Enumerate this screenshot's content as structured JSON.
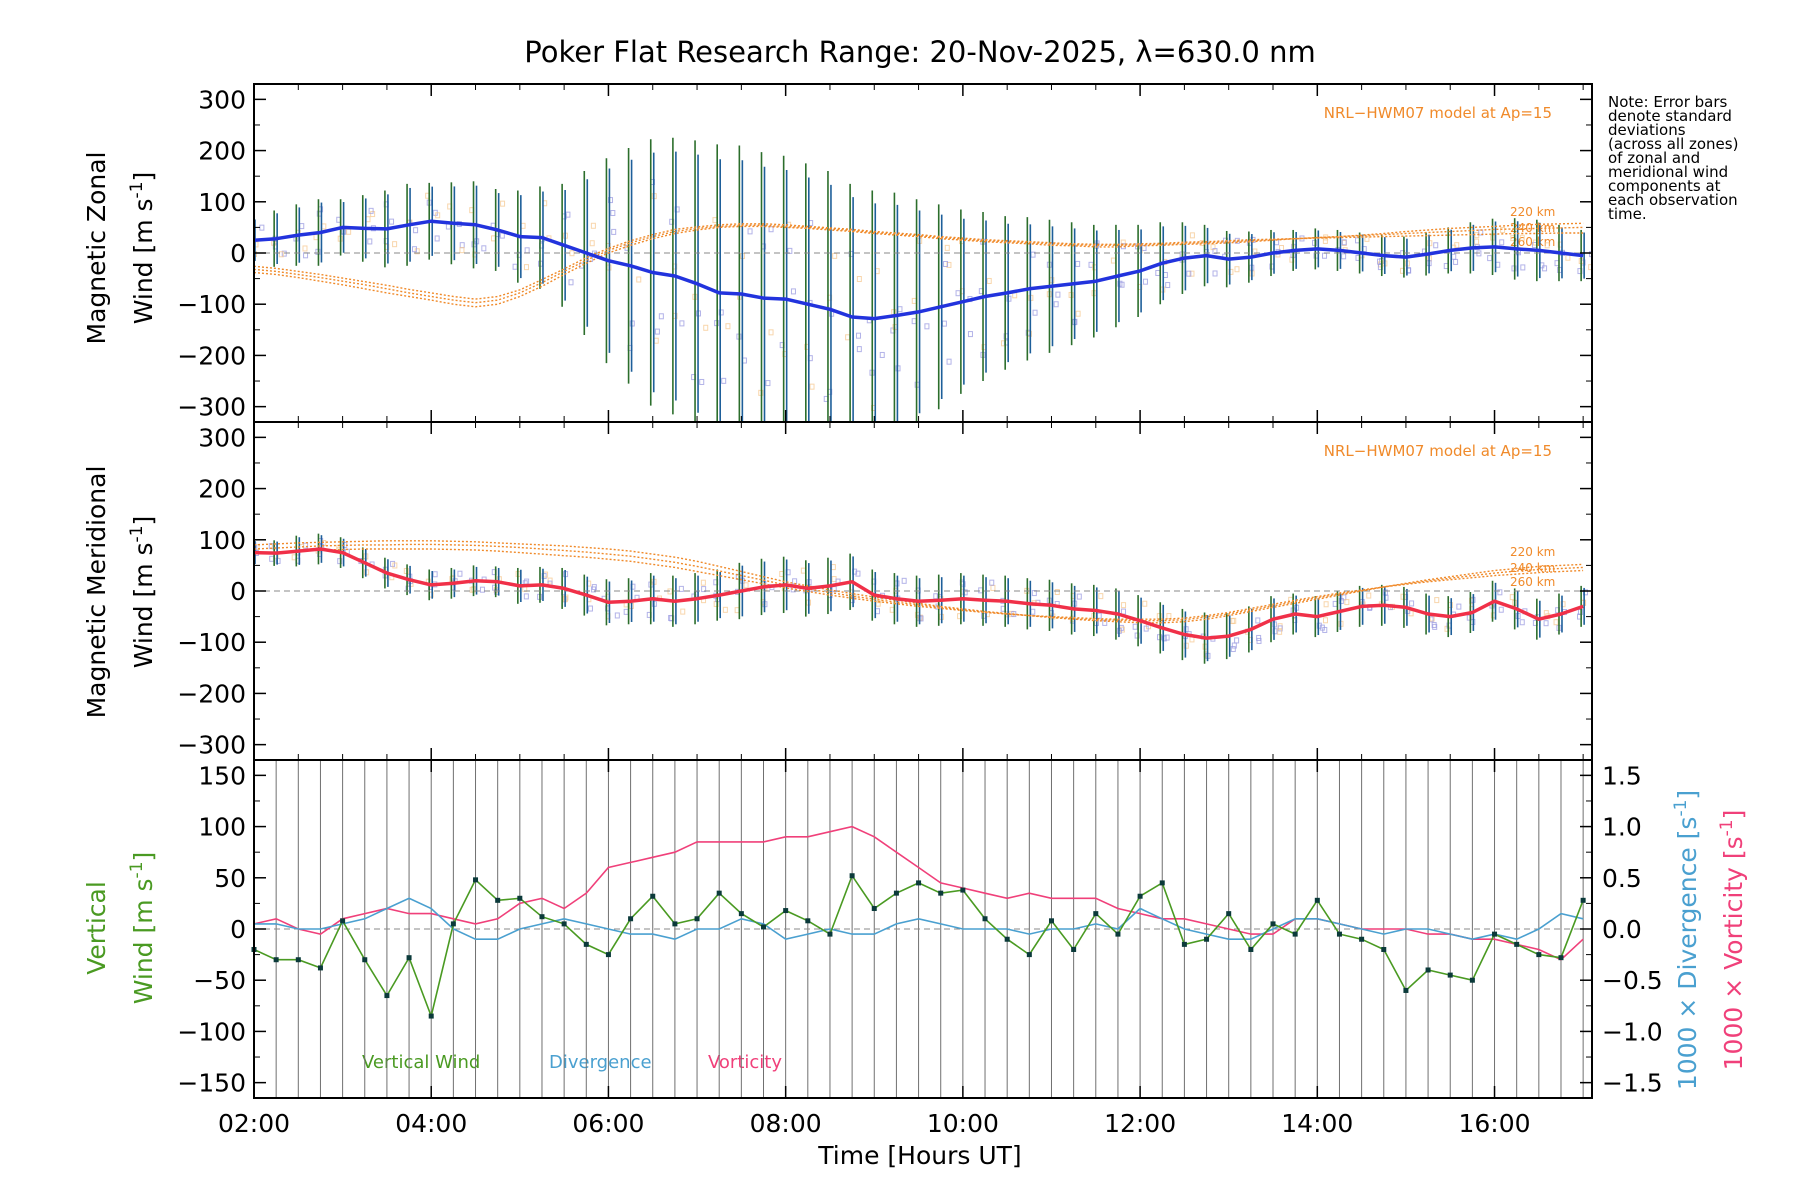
{
  "title": "Poker Flat Research Range: 20-Nov-2025, λ=630.0 nm",
  "note_lines": [
    "Note: Error bars",
    "denote standard",
    "deviations",
    "(across all zones)",
    "of zonal and",
    "meridional wind",
    "components at",
    "each observation",
    "time."
  ],
  "colors": {
    "zonal": "#2233dd",
    "meridional": "#f03048",
    "model": "#f08a2a",
    "vertical": "#4a9a22",
    "divergence": "#4aa0d0",
    "vorticity": "#f0407a",
    "scatter": "#9a9ae0",
    "grid": "#707070"
  },
  "chart_data": [
    {
      "id": "zonal",
      "type": "line",
      "ylabel_line1": "Magnetic Zonal",
      "ylabel_line2": "Wind [m s",
      "ylabel_sup": "-1",
      "ylabel_close": "]",
      "ylim": [
        -330,
        330
      ],
      "yticks": [
        300,
        200,
        100,
        0,
        -100,
        -200,
        -300
      ],
      "ytick_labels": [
        "300",
        "200",
        "100",
        "0",
        "−100",
        "−200",
        "−300"
      ],
      "model_label": "NRL−HWM07 model at Ap=15",
      "altitude_labels": [
        "220 km",
        "240 km",
        "260 km"
      ],
      "x": [
        2.0,
        2.25,
        2.5,
        2.75,
        3.0,
        3.25,
        3.5,
        3.75,
        4.0,
        4.25,
        4.5,
        4.75,
        5.0,
        5.25,
        5.5,
        5.75,
        6.0,
        6.25,
        6.5,
        6.75,
        7.0,
        7.25,
        7.5,
        7.75,
        8.0,
        8.25,
        8.5,
        8.75,
        9.0,
        9.25,
        9.5,
        9.75,
        10.0,
        10.25,
        10.5,
        10.75,
        11.0,
        11.25,
        11.5,
        11.75,
        12.0,
        12.25,
        12.5,
        12.75,
        13.0,
        13.25,
        13.5,
        13.75,
        14.0,
        14.25,
        14.5,
        14.75,
        15.0,
        15.25,
        15.5,
        15.75,
        16.0,
        16.25,
        16.5,
        16.75,
        17.0
      ],
      "series": [
        {
          "name": "Zonal wind",
          "values": [
            25,
            28,
            35,
            40,
            50,
            48,
            47,
            55,
            62,
            58,
            55,
            45,
            32,
            30,
            15,
            0,
            -15,
            -25,
            -38,
            -45,
            -60,
            -78,
            -80,
            -88,
            -90,
            -100,
            -110,
            -125,
            -128,
            -122,
            -115,
            -105,
            -95,
            -85,
            -78,
            -70,
            -65,
            -60,
            -55,
            -45,
            -35,
            -20,
            -10,
            -5,
            -12,
            -8,
            0,
            5,
            8,
            5,
            0,
            -5,
            -8,
            -2,
            5,
            10,
            12,
            8,
            5,
            0,
            -5
          ],
          "std": [
            45,
            55,
            60,
            65,
            55,
            65,
            75,
            80,
            75,
            80,
            85,
            80,
            90,
            100,
            120,
            160,
            200,
            230,
            260,
            270,
            280,
            290,
            290,
            285,
            280,
            275,
            270,
            260,
            250,
            240,
            220,
            200,
            180,
            165,
            150,
            140,
            130,
            120,
            110,
            100,
            90,
            80,
            70,
            60,
            55,
            50,
            45,
            40,
            40,
            40,
            40,
            40,
            40,
            42,
            45,
            50,
            55,
            60,
            60,
            55,
            50
          ]
        },
        {
          "name": "Model 220 km",
          "values": [
            -38,
            -42,
            -48,
            -55,
            -62,
            -70,
            -78,
            -85,
            -92,
            -100,
            -105,
            -100,
            -85,
            -65,
            -42,
            -20,
            0,
            15,
            28,
            38,
            45,
            50,
            52,
            52,
            50,
            48,
            45,
            42,
            38,
            35,
            32,
            28,
            25,
            22,
            20,
            18,
            15,
            14,
            12,
            12,
            14,
            15,
            17,
            18,
            20,
            22,
            25,
            28,
            30,
            32,
            35,
            38,
            42,
            45,
            48,
            50,
            52,
            54,
            56,
            57,
            58
          ]
        },
        {
          "name": "Model 240 km",
          "values": [
            -32,
            -36,
            -42,
            -48,
            -55,
            -62,
            -70,
            -78,
            -85,
            -92,
            -97,
            -92,
            -78,
            -58,
            -36,
            -14,
            5,
            20,
            32,
            42,
            48,
            52,
            54,
            54,
            52,
            50,
            47,
            44,
            40,
            37,
            34,
            30,
            27,
            24,
            22,
            20,
            18,
            16,
            15,
            15,
            16,
            17,
            19,
            20,
            22,
            24,
            26,
            28,
            30,
            32,
            34,
            36,
            38,
            40,
            42,
            44,
            46,
            47,
            48,
            49,
            50
          ]
        },
        {
          "name": "Model 260 km",
          "values": [
            -26,
            -30,
            -36,
            -42,
            -49,
            -56,
            -63,
            -71,
            -78,
            -85,
            -90,
            -85,
            -72,
            -52,
            -31,
            -9,
            9,
            24,
            36,
            46,
            51,
            55,
            57,
            57,
            55,
            52,
            49,
            46,
            42,
            39,
            36,
            32,
            29,
            26,
            24,
            22,
            20,
            18,
            17,
            17,
            18,
            19,
            21,
            22,
            24,
            26,
            27,
            28,
            29,
            30,
            31,
            32,
            33,
            34,
            35,
            36,
            37,
            38,
            38,
            39,
            39
          ]
        }
      ]
    },
    {
      "id": "meridional",
      "type": "line",
      "ylabel_line1": "Magnetic Meridional",
      "ylabel_line2": "Wind [m s",
      "ylabel_sup": "-1",
      "ylabel_close": "]",
      "ylim": [
        -330,
        330
      ],
      "yticks": [
        300,
        200,
        100,
        0,
        -100,
        -200,
        -300
      ],
      "ytick_labels": [
        "300",
        "200",
        "100",
        "0",
        "−100",
        "−200",
        "−300"
      ],
      "model_label": "NRL−HWM07 model at Ap=15",
      "altitude_labels": [
        "220 km",
        "240 km",
        "260 km"
      ],
      "x": [
        2.0,
        2.25,
        2.5,
        2.75,
        3.0,
        3.25,
        3.5,
        3.75,
        4.0,
        4.25,
        4.5,
        4.75,
        5.0,
        5.25,
        5.5,
        5.75,
        6.0,
        6.25,
        6.5,
        6.75,
        7.0,
        7.25,
        7.5,
        7.75,
        8.0,
        8.25,
        8.5,
        8.75,
        9.0,
        9.25,
        9.5,
        9.75,
        10.0,
        10.25,
        10.5,
        10.75,
        11.0,
        11.25,
        11.5,
        11.75,
        12.0,
        12.25,
        12.5,
        12.75,
        13.0,
        13.25,
        13.5,
        13.75,
        14.0,
        14.25,
        14.5,
        14.75,
        15.0,
        15.25,
        15.5,
        15.75,
        16.0,
        16.25,
        16.5,
        16.75,
        17.0
      ],
      "series": [
        {
          "name": "Meridional wind",
          "values": [
            75,
            74,
            78,
            82,
            75,
            55,
            35,
            22,
            12,
            15,
            20,
            18,
            10,
            12,
            5,
            -8,
            -22,
            -20,
            -15,
            -20,
            -15,
            -8,
            0,
            8,
            12,
            5,
            10,
            18,
            -8,
            -15,
            -20,
            -18,
            -15,
            -18,
            -20,
            -25,
            -28,
            -35,
            -38,
            -45,
            -58,
            -72,
            -85,
            -92,
            -88,
            -75,
            -55,
            -45,
            -50,
            -40,
            -30,
            -28,
            -32,
            -45,
            -50,
            -42,
            -20,
            -35,
            -55,
            -45,
            -30
          ],
          "std": [
            25,
            25,
            30,
            30,
            30,
            30,
            30,
            30,
            30,
            30,
            30,
            30,
            35,
            35,
            40,
            40,
            45,
            45,
            50,
            50,
            50,
            50,
            55,
            55,
            55,
            55,
            55,
            55,
            50,
            50,
            50,
            50,
            50,
            50,
            50,
            50,
            50,
            50,
            50,
            50,
            50,
            50,
            50,
            50,
            45,
            45,
            45,
            40,
            40,
            40,
            40,
            40,
            40,
            40,
            40,
            40,
            40,
            40,
            40,
            40,
            40
          ]
        },
        {
          "name": "Model 220 km",
          "values": [
            90,
            92,
            94,
            95,
            96,
            97,
            98,
            98,
            98,
            97,
            96,
            94,
            92,
            90,
            88,
            85,
            82,
            78,
            72,
            66,
            58,
            48,
            38,
            28,
            18,
            10,
            2,
            -5,
            -12,
            -18,
            -24,
            -30,
            -35,
            -40,
            -44,
            -48,
            -52,
            -55,
            -58,
            -60,
            -62,
            -62,
            -60,
            -55,
            -48,
            -40,
            -32,
            -24,
            -16,
            -8,
            0,
            8,
            15,
            22,
            28,
            34,
            40,
            44,
            48,
            50,
            52
          ]
        },
        {
          "name": "Model 240 km",
          "values": [
            82,
            84,
            86,
            88,
            89,
            90,
            90,
            91,
            91,
            90,
            89,
            87,
            85,
            82,
            79,
            76,
            72,
            68,
            62,
            56,
            48,
            39,
            30,
            21,
            12,
            4,
            -3,
            -10,
            -16,
            -22,
            -27,
            -32,
            -37,
            -41,
            -45,
            -48,
            -51,
            -54,
            -56,
            -57,
            -58,
            -58,
            -56,
            -51,
            -45,
            -37,
            -29,
            -21,
            -13,
            -6,
            1,
            8,
            14,
            20,
            25,
            30,
            35,
            39,
            42,
            44,
            46
          ]
        },
        {
          "name": "Model 260 km",
          "values": [
            74,
            76,
            78,
            80,
            81,
            82,
            82,
            82,
            82,
            81,
            80,
            78,
            75,
            72,
            69,
            66,
            62,
            58,
            52,
            46,
            38,
            30,
            22,
            14,
            6,
            -1,
            -8,
            -14,
            -20,
            -25,
            -30,
            -34,
            -38,
            -42,
            -45,
            -48,
            -50,
            -52,
            -54,
            -55,
            -55,
            -55,
            -53,
            -48,
            -42,
            -34,
            -26,
            -18,
            -11,
            -4,
            2,
            8,
            13,
            18,
            22,
            26,
            30,
            33,
            36,
            38,
            40
          ]
        }
      ]
    },
    {
      "id": "vertical",
      "type": "line",
      "ylabel_line1": "Vertical",
      "ylabel_line2": "Wind [m s",
      "ylabel_sup": "-1",
      "ylabel_close": "]",
      "ylabel_right1": "1000 × Divergence [s",
      "ylabel_right2": "1000 × Vorticity [s",
      "ylim": [
        -165,
        165
      ],
      "yticks": [
        150,
        100,
        50,
        0,
        -50,
        -100,
        -150
      ],
      "ytick_labels": [
        "150",
        "100",
        "50",
        "0",
        "−50",
        "−100",
        "−150"
      ],
      "y2lim": [
        -1.65,
        1.65
      ],
      "y2ticks": [
        1.5,
        1.0,
        0.5,
        0.0,
        -0.5,
        -1.0,
        -1.5
      ],
      "y2tick_labels": [
        "1.5",
        "1.0",
        "0.5",
        "0.0",
        "−0.5",
        "−1.0",
        "−1.5"
      ],
      "xticks": [
        2,
        4,
        6,
        8,
        10,
        12,
        14,
        16
      ],
      "xtick_labels": [
        "02:00",
        "04:00",
        "06:00",
        "08:00",
        "10:00",
        "12:00",
        "14:00",
        "16:00"
      ],
      "xlim": [
        2.0,
        17.1
      ],
      "xlabel": "Time [Hours UT]",
      "legend": [
        "Vertical Wind",
        "Divergence",
        "Vorticity"
      ],
      "x": [
        2.0,
        2.25,
        2.5,
        2.75,
        3.0,
        3.25,
        3.5,
        3.75,
        4.0,
        4.25,
        4.5,
        4.75,
        5.0,
        5.25,
        5.5,
        5.75,
        6.0,
        6.25,
        6.5,
        6.75,
        7.0,
        7.25,
        7.5,
        7.75,
        8.0,
        8.25,
        8.5,
        8.75,
        9.0,
        9.25,
        9.5,
        9.75,
        10.0,
        10.25,
        10.5,
        10.75,
        11.0,
        11.25,
        11.5,
        11.75,
        12.0,
        12.25,
        12.5,
        12.75,
        13.0,
        13.25,
        13.5,
        13.75,
        14.0,
        14.25,
        14.5,
        14.75,
        15.0,
        15.25,
        15.5,
        15.75,
        16.0,
        16.25,
        16.5,
        16.75,
        17.0
      ],
      "series": [
        {
          "name": "Vertical Wind",
          "values": [
            -20,
            -30,
            -30,
            -38,
            8,
            -30,
            -65,
            -28,
            -85,
            5,
            48,
            28,
            30,
            12,
            5,
            -15,
            -25,
            10,
            32,
            5,
            10,
            35,
            15,
            2,
            18,
            8,
            -5,
            52,
            20,
            35,
            45,
            35,
            38,
            10,
            -10,
            -25,
            8,
            -20,
            15,
            -5,
            32,
            45,
            -15,
            -10,
            15,
            -20,
            5,
            -5,
            28,
            -5,
            -10,
            -20,
            -60,
            -40,
            -45,
            -50,
            -5,
            -15,
            -25,
            -28,
            28
          ]
        },
        {
          "name": "Divergence",
          "values": [
            0.05,
            0.05,
            0.0,
            0.0,
            0.05,
            0.1,
            0.2,
            0.3,
            0.2,
            0.0,
            -0.1,
            -0.1,
            0.0,
            0.05,
            0.1,
            0.05,
            0.0,
            -0.05,
            -0.05,
            -0.1,
            0.0,
            0.0,
            0.1,
            0.05,
            -0.1,
            -0.05,
            0.0,
            -0.05,
            -0.05,
            0.05,
            0.1,
            0.05,
            0.0,
            0.0,
            0.0,
            -0.05,
            0.0,
            0.0,
            0.05,
            0.0,
            0.2,
            0.1,
            0.0,
            -0.05,
            -0.1,
            -0.1,
            0.0,
            0.1,
            0.1,
            0.05,
            0.0,
            -0.05,
            0.0,
            0.0,
            -0.05,
            -0.1,
            -0.05,
            -0.1,
            0.0,
            0.15,
            0.1
          ]
        },
        {
          "name": "Vorticity",
          "values": [
            0.05,
            0.1,
            0.0,
            -0.05,
            0.1,
            0.15,
            0.2,
            0.15,
            0.15,
            0.1,
            0.05,
            0.1,
            0.25,
            0.3,
            0.2,
            0.35,
            0.6,
            0.65,
            0.7,
            0.75,
            0.85,
            0.85,
            0.85,
            0.85,
            0.9,
            0.9,
            0.95,
            1.0,
            0.9,
            0.75,
            0.6,
            0.45,
            0.4,
            0.35,
            0.3,
            0.35,
            0.3,
            0.3,
            0.3,
            0.2,
            0.15,
            0.1,
            0.1,
            0.05,
            0.0,
            -0.05,
            -0.05,
            0.1,
            0.1,
            0.05,
            0.0,
            0.0,
            0.0,
            -0.05,
            -0.05,
            -0.1,
            -0.1,
            -0.15,
            -0.2,
            -0.3,
            -0.1
          ]
        }
      ]
    }
  ]
}
